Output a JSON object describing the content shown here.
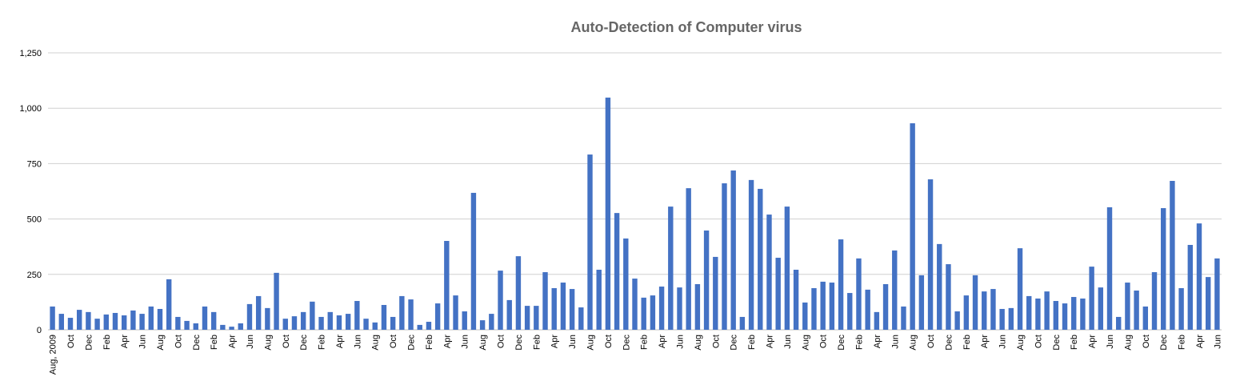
{
  "chart_data": {
    "type": "bar",
    "title": "Auto-Detection of Computer virus",
    "categories": [
      "Aug, 2009",
      null,
      "Oct",
      null,
      "Dec",
      null,
      "Feb",
      null,
      "Apr",
      null,
      "Jun",
      null,
      "Aug",
      null,
      "Oct",
      null,
      "Dec",
      null,
      "Feb",
      null,
      "Apr",
      null,
      "Jun",
      null,
      "Aug",
      null,
      "Oct",
      null,
      "Dec",
      null,
      "Feb",
      null,
      "Apr",
      null,
      "Jun",
      null,
      "Aug",
      null,
      "Oct",
      null,
      "Dec",
      null,
      "Feb",
      null,
      "Apr",
      null,
      "Jun",
      null,
      "Aug",
      null,
      "Oct",
      null,
      "Dec",
      null,
      "Feb",
      null,
      "Apr",
      null,
      "Jun",
      null,
      "Aug",
      null,
      "Oct",
      null,
      "Dec",
      null,
      "Feb",
      null,
      "Apr",
      null,
      "Jun",
      null,
      "Aug",
      null,
      "Oct",
      null,
      "Dec",
      null,
      "Feb",
      null,
      "Apr",
      null,
      "Jun",
      null,
      "Aug",
      null,
      "Oct",
      null,
      "Dec",
      null,
      "Feb",
      null,
      "Apr",
      null,
      "Jun",
      null,
      "Aug",
      null,
      "Oct",
      null,
      "Dec",
      null,
      "Feb",
      null,
      "Apr",
      null,
      "Jun",
      null,
      "Aug",
      null,
      "Oct",
      null,
      "Dec",
      null,
      "Feb",
      null,
      "Apr",
      null,
      "Jun",
      null,
      "Aug",
      null,
      "Oct",
      null,
      "Dec",
      null,
      "Feb",
      null,
      "Apr",
      null,
      "Jun"
    ],
    "values": [
      105,
      72,
      54,
      90,
      80,
      50,
      69,
      76,
      65,
      87,
      72,
      105,
      94,
      228,
      58,
      40,
      29,
      105,
      80,
      22,
      14,
      29,
      116,
      152,
      98,
      257,
      50,
      61,
      80,
      127,
      58,
      80,
      65,
      72,
      130,
      50,
      33,
      112,
      58,
      152,
      137,
      22,
      36,
      119,
      401,
      155,
      83,
      618,
      43,
      72,
      267,
      134,
      332,
      108,
      108,
      260,
      188,
      213,
      184,
      101,
      791,
      271,
      1048,
      527,
      412,
      231,
      145,
      155,
      195,
      556,
      191,
      639,
      206,
      448,
      329,
      661,
      719,
      58,
      676,
      636,
      520,
      325,
      556,
      271,
      123,
      188,
      217,
      213,
      408,
      166,
      322,
      181,
      80,
      206,
      358,
      105,
      932,
      246,
      679,
      387,
      296,
      83,
      155,
      246,
      173,
      184,
      94,
      98,
      368,
      152,
      141,
      173,
      130,
      119,
      148,
      141,
      285,
      191,
      553,
      58,
      213,
      177,
      105,
      260,
      549,
      672,
      188,
      383,
      480,
      238,
      322
    ],
    "color": "#4472c4",
    "ylim": [
      0,
      1250
    ],
    "yticks": [
      0,
      250,
      500,
      750,
      {
        "value": 1000,
        "label": "1,000"
      },
      {
        "value": 1250,
        "label": "1,250"
      }
    ],
    "grid": true
  }
}
